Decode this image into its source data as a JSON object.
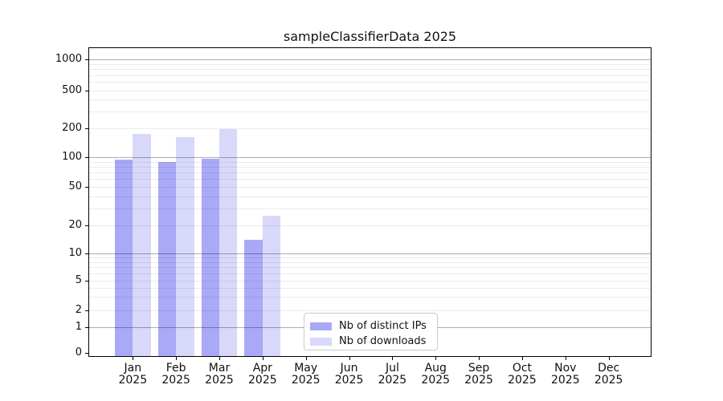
{
  "chart_data": {
    "type": "bar",
    "title": "sampleClassifierData 2025",
    "x_tick_months": [
      "Jan",
      "Feb",
      "Mar",
      "Apr",
      "May",
      "Jun",
      "Jul",
      "Aug",
      "Sep",
      "Oct",
      "Nov",
      "Dec"
    ],
    "x_tick_year": "2025",
    "categories": [
      "Jan 2025",
      "Feb 2025",
      "Mar 2025",
      "Apr 2025",
      "May 2025",
      "Jun 2025",
      "Jul 2025",
      "Aug 2025",
      "Sep 2025",
      "Oct 2025",
      "Nov 2025",
      "Dec 2025"
    ],
    "series": [
      {
        "name": "Nb of distinct IPs",
        "color": "#a9a9f7",
        "values": [
          94,
          90,
          97,
          14,
          0,
          0,
          0,
          0,
          0,
          0,
          0,
          0
        ]
      },
      {
        "name": "Nb of downloads",
        "color": "#d8d8fa",
        "values": [
          176,
          162,
          198,
          25,
          0,
          0,
          0,
          0,
          0,
          0,
          0,
          0
        ]
      }
    ],
    "y_ticks": [
      0,
      1,
      2,
      5,
      10,
      20,
      50,
      100,
      200,
      500,
      1000
    ],
    "yscale": "symlog",
    "ylim": [
      0,
      1300
    ],
    "xlabel": "",
    "ylabel": "",
    "grid": "horizontal major+minor, drawn above bars",
    "legend_position": "inside lower center-left"
  }
}
